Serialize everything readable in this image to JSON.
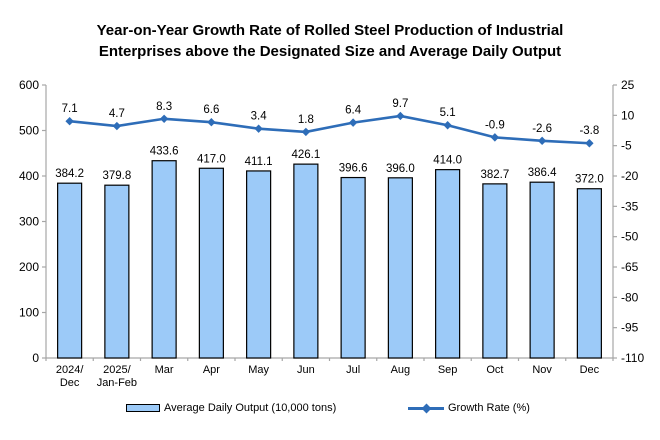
{
  "title_line1": "Year-on-Year Growth Rate of Rolled Steel Production of Industrial",
  "title_line2": "Enterprises above the Designated Size and Average Daily Output",
  "colors": {
    "bar_fill": "#9CCAF8",
    "bar_border": "#000000",
    "line": "#2E6DB8",
    "axis": "#A6A6A6",
    "text": "#000000"
  },
  "chart_data": {
    "type": "bar+line",
    "categories": [
      "2024/\nDec",
      "2025/\nJan-Feb",
      "Mar",
      "Apr",
      "May",
      "Jun",
      "Jul",
      "Aug",
      "Sep",
      "Oct",
      "Nov",
      "Dec"
    ],
    "series": [
      {
        "name": "Average Daily Output (10,000 tons)",
        "type": "bar",
        "axis": "left",
        "values": [
          384.2,
          379.8,
          433.6,
          417.0,
          411.1,
          426.1,
          396.6,
          396.0,
          414.0,
          382.7,
          386.4,
          372.0
        ]
      },
      {
        "name": "Growth Rate (%)",
        "type": "line",
        "axis": "right",
        "values": [
          7.1,
          4.7,
          8.3,
          6.6,
          3.4,
          1.8,
          6.4,
          9.7,
          5.1,
          -0.9,
          -2.6,
          -3.8
        ]
      }
    ],
    "left_axis": {
      "min": 0,
      "max": 600,
      "step": 100
    },
    "right_axis": {
      "min": -110,
      "max": 25,
      "step": 15
    },
    "grid": false,
    "legend_position": "bottom",
    "data_labels": true
  }
}
